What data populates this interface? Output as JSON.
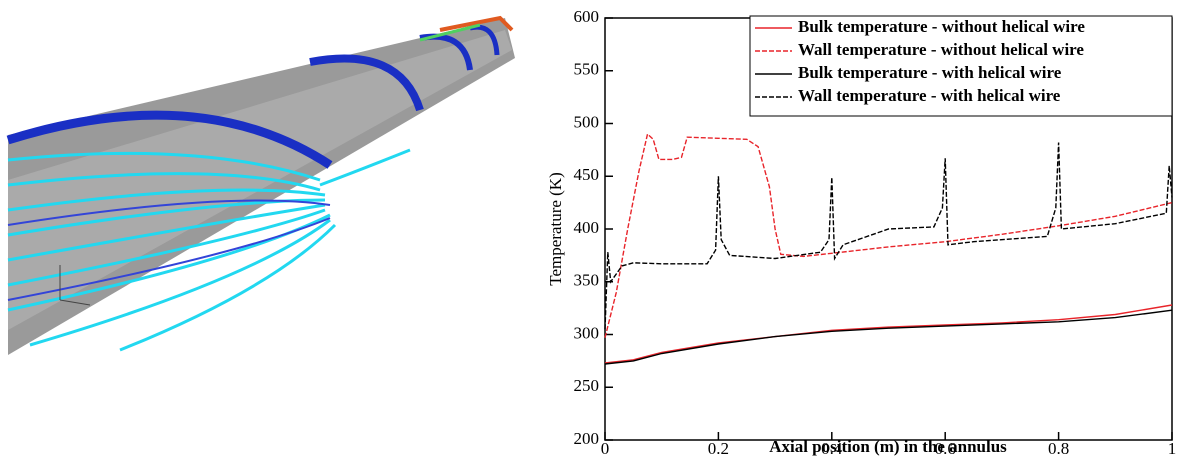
{
  "chart_data": {
    "type": "line",
    "xlabel": "Axial position (m) in the annulus",
    "ylabel": "Temperature (K)",
    "xlim": [
      0,
      1
    ],
    "xticks": [
      0,
      0.2,
      0.4,
      0.6,
      0.8,
      1
    ],
    "ylim": [
      200,
      600
    ],
    "yticks": [
      200,
      250,
      300,
      350,
      400,
      450,
      500,
      550,
      600
    ],
    "legend": "top-right",
    "series": [
      {
        "name": "Bulk temperature - without helical wire",
        "color": "#e8242a",
        "dash": false,
        "x": [
          0,
          0.05,
          0.1,
          0.2,
          0.3,
          0.4,
          0.5,
          0.6,
          0.7,
          0.8,
          0.9,
          1.0
        ],
        "values": [
          273,
          276,
          283,
          292,
          298,
          304,
          307,
          309,
          311,
          314,
          319,
          328
        ]
      },
      {
        "name": "Wall temperature - without helical wire",
        "color": "#e8242a",
        "dash": true,
        "x": [
          0,
          0.02,
          0.04,
          0.06,
          0.075,
          0.085,
          0.095,
          0.12,
          0.135,
          0.145,
          0.2,
          0.25,
          0.27,
          0.29,
          0.3,
          0.31,
          0.35,
          0.4,
          0.5,
          0.6,
          0.7,
          0.8,
          0.9,
          1.0
        ],
        "values": [
          297,
          340,
          400,
          455,
          490,
          485,
          466,
          466,
          468,
          487,
          486,
          485,
          478,
          440,
          400,
          376,
          374,
          377,
          383,
          388,
          395,
          403,
          412,
          425
        ]
      },
      {
        "name": "Bulk temperature - with helical wire",
        "color": "#000000",
        "dash": false,
        "x": [
          0,
          0.05,
          0.1,
          0.2,
          0.3,
          0.4,
          0.5,
          0.6,
          0.7,
          0.8,
          0.9,
          1.0
        ],
        "values": [
          272,
          275,
          282,
          291,
          298,
          303,
          306,
          308,
          310,
          312,
          316,
          323
        ]
      },
      {
        "name": "Wall temperature - with helical wire",
        "color": "#000000",
        "dash": true,
        "x": [
          0,
          0.005,
          0.01,
          0.03,
          0.05,
          0.1,
          0.18,
          0.195,
          0.2,
          0.205,
          0.22,
          0.3,
          0.38,
          0.395,
          0.4,
          0.405,
          0.42,
          0.5,
          0.58,
          0.595,
          0.6,
          0.605,
          0.65,
          0.78,
          0.795,
          0.8,
          0.805,
          0.9,
          0.99,
          0.995,
          1.0
        ],
        "values": [
          305,
          378,
          350,
          365,
          368,
          367,
          367,
          380,
          450,
          390,
          375,
          372,
          378,
          390,
          449,
          372,
          385,
          400,
          402,
          420,
          467,
          385,
          388,
          393,
          420,
          482,
          400,
          405,
          415,
          460,
          430
        ]
      }
    ]
  }
}
